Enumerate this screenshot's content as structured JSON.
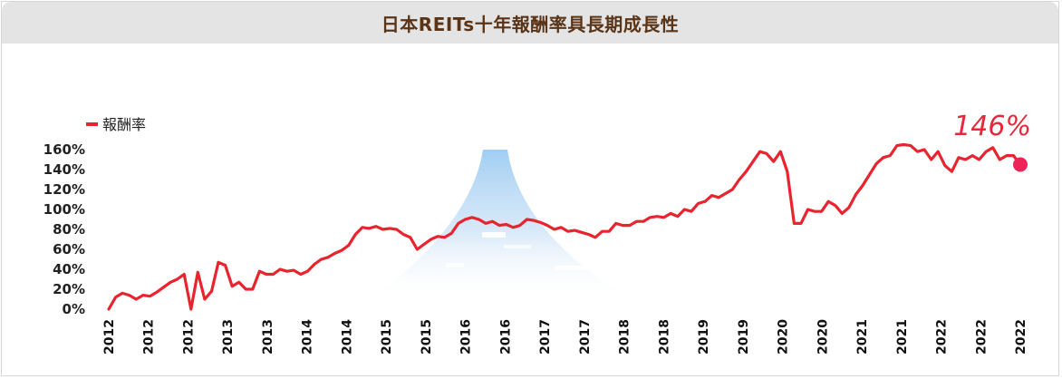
{
  "title": "日本REITs十年報酬率具長期成長性",
  "colors": {
    "line": "#e8242f",
    "endpoint": "#ec2457",
    "title": "#5a3417"
  },
  "chart_data": {
    "type": "line",
    "title": "日本REITs十年報酬率具長期成長性",
    "ylim": [
      0,
      160
    ],
    "y_ticks": [
      "0%",
      "20%",
      "40%",
      "60%",
      "80%",
      "100%",
      "120%",
      "140%",
      "160%"
    ],
    "x_ticks": [
      "2012",
      "2012",
      "2012",
      "2013",
      "2013",
      "2014",
      "2014",
      "2015",
      "2015",
      "2016",
      "2016",
      "2017",
      "2017",
      "2018",
      "2018",
      "2019",
      "2019",
      "2020",
      "2020",
      "2021",
      "2021",
      "2022",
      "2022",
      "2022"
    ],
    "legend": "報酬率",
    "legend_position": "top-left",
    "end_label": "146%",
    "series": [
      {
        "name": "報酬率",
        "values": [
          0,
          12,
          16,
          14,
          10,
          14,
          13,
          17,
          22,
          27,
          30,
          35,
          0,
          37,
          10,
          18,
          47,
          44,
          23,
          27,
          20,
          20,
          38,
          35,
          35,
          40,
          38,
          39,
          35,
          38,
          45,
          50,
          52,
          56,
          59,
          64,
          75,
          82,
          81,
          83,
          80,
          81,
          80,
          75,
          72,
          60,
          65,
          70,
          73,
          72,
          76,
          86,
          90,
          92,
          90,
          86,
          88,
          84,
          85,
          82,
          84,
          90,
          89,
          87,
          84,
          80,
          82,
          78,
          79,
          77,
          75,
          72,
          78,
          78,
          86,
          84,
          84,
          88,
          88,
          92,
          93,
          92,
          96,
          93,
          100,
          98,
          106,
          108,
          114,
          112,
          116,
          120,
          130,
          138,
          148,
          158,
          156,
          148,
          158,
          138,
          86,
          86,
          100,
          98,
          98,
          108,
          104,
          96,
          102,
          115,
          124,
          135,
          146,
          152,
          154,
          164,
          165,
          164,
          158,
          160,
          150,
          158,
          144,
          138,
          152,
          150,
          154,
          150,
          158,
          162,
          150,
          154,
          154,
          145
        ]
      }
    ]
  }
}
